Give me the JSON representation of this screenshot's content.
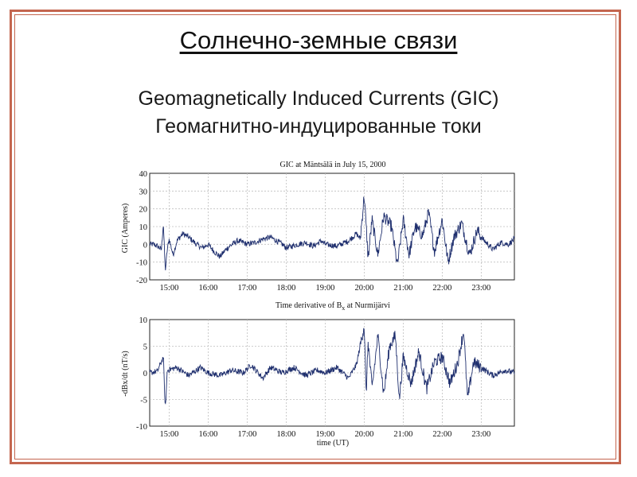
{
  "slide": {
    "title": "Солнечно-земные связи",
    "subtitle_en": "Geomagnetically Induced Currents (GIC)",
    "subtitle_ru": "Геомагнитно-индуцированные токи"
  },
  "colors": {
    "border": "#c4664f",
    "line": "#1f2f6e",
    "grid": "#bfbfbf"
  },
  "chart_data": [
    {
      "type": "line",
      "title": "GIC at Mäntsälä in July 15, 2000",
      "xlabel": "",
      "ylabel": "GIC (Amperes)",
      "xlim": [
        14.5,
        23.85
      ],
      "ylim": [
        -20,
        40
      ],
      "yticks": [
        40,
        30,
        20,
        10,
        0,
        -10,
        -20
      ],
      "xtick_values": [
        15,
        16,
        17,
        18,
        19,
        20,
        21,
        22,
        23
      ],
      "xtick_labels": [
        "15:00",
        "16:00",
        "17:00",
        "18:00",
        "19:00",
        "20:00",
        "21:00",
        "22:00",
        "23:00"
      ],
      "grid": true,
      "series": [
        {
          "values_by_hour": [
            [
              14.5,
              0
            ],
            [
              14.6,
              0
            ],
            [
              14.7,
              -1
            ],
            [
              14.8,
              -3
            ],
            [
              14.85,
              12
            ],
            [
              14.9,
              -15
            ],
            [
              14.95,
              -3
            ],
            [
              15.0,
              3
            ],
            [
              15.1,
              -6
            ],
            [
              15.2,
              2
            ],
            [
              15.35,
              6
            ],
            [
              15.5,
              4
            ],
            [
              15.7,
              0
            ],
            [
              15.85,
              -2
            ],
            [
              16.0,
              0
            ],
            [
              16.15,
              -4
            ],
            [
              16.3,
              -7
            ],
            [
              16.45,
              -3
            ],
            [
              16.55,
              -1
            ],
            [
              16.75,
              2
            ],
            [
              16.9,
              1
            ],
            [
              17.0,
              0
            ],
            [
              17.2,
              1
            ],
            [
              17.4,
              3
            ],
            [
              17.6,
              4
            ],
            [
              17.75,
              2
            ],
            [
              17.9,
              0
            ],
            [
              18.0,
              -2
            ],
            [
              18.3,
              0
            ],
            [
              18.5,
              1
            ],
            [
              18.7,
              -1
            ],
            [
              18.9,
              2
            ],
            [
              19.0,
              0
            ],
            [
              19.3,
              -1
            ],
            [
              19.6,
              2
            ],
            [
              19.8,
              6
            ],
            [
              19.9,
              3
            ],
            [
              20.0,
              28
            ],
            [
              20.1,
              -8
            ],
            [
              20.2,
              14
            ],
            [
              20.35,
              -6
            ],
            [
              20.5,
              16
            ],
            [
              20.7,
              10
            ],
            [
              20.85,
              -12
            ],
            [
              21.0,
              14
            ],
            [
              21.15,
              -6
            ],
            [
              21.3,
              10
            ],
            [
              21.5,
              5
            ],
            [
              21.65,
              18
            ],
            [
              21.8,
              -4
            ],
            [
              22.0,
              14
            ],
            [
              22.15,
              -10
            ],
            [
              22.3,
              4
            ],
            [
              22.5,
              12
            ],
            [
              22.7,
              -6
            ],
            [
              22.9,
              8
            ],
            [
              23.0,
              4
            ],
            [
              23.3,
              -3
            ],
            [
              23.5,
              1
            ],
            [
              23.7,
              0
            ],
            [
              23.85,
              3
            ]
          ]
        }
      ]
    },
    {
      "type": "line",
      "title": "Time derivative of B_x at Nurmijärvi",
      "xlabel": "time (UT)",
      "ylabel": "-dBx/dt (nT/s)",
      "xlim": [
        14.5,
        23.85
      ],
      "ylim": [
        -10,
        10
      ],
      "yticks": [
        10,
        5,
        0,
        -5,
        -10
      ],
      "xtick_values": [
        15,
        16,
        17,
        18,
        19,
        20,
        21,
        22,
        23
      ],
      "xtick_labels": [
        "15:00",
        "16:00",
        "17:00",
        "18:00",
        "19:00",
        "20:00",
        "21:00",
        "22:00",
        "23:00"
      ],
      "grid": true,
      "series": [
        {
          "values_by_hour": [
            [
              14.5,
              0
            ],
            [
              14.7,
              0.3
            ],
            [
              14.85,
              3
            ],
            [
              14.9,
              -7
            ],
            [
              14.95,
              0.5
            ],
            [
              15.2,
              1
            ],
            [
              15.5,
              -0.5
            ],
            [
              15.8,
              1
            ],
            [
              16.0,
              0
            ],
            [
              16.3,
              -0.5
            ],
            [
              16.6,
              0.5
            ],
            [
              16.9,
              0
            ],
            [
              17.1,
              1.5
            ],
            [
              17.4,
              -1
            ],
            [
              17.6,
              1
            ],
            [
              17.9,
              0
            ],
            [
              18.2,
              1
            ],
            [
              18.5,
              -0.5
            ],
            [
              18.8,
              0.5
            ],
            [
              19.0,
              0
            ],
            [
              19.3,
              1
            ],
            [
              19.6,
              -1
            ],
            [
              19.8,
              1.5
            ],
            [
              20.0,
              9
            ],
            [
              20.05,
              -4
            ],
            [
              20.1,
              6
            ],
            [
              20.2,
              -3
            ],
            [
              20.35,
              7
            ],
            [
              20.5,
              -4
            ],
            [
              20.65,
              5
            ],
            [
              20.8,
              7
            ],
            [
              20.9,
              -5
            ],
            [
              21.0,
              3
            ],
            [
              21.2,
              -2
            ],
            [
              21.4,
              4
            ],
            [
              21.6,
              -3
            ],
            [
              21.8,
              2
            ],
            [
              22.0,
              3
            ],
            [
              22.2,
              -2
            ],
            [
              22.4,
              2
            ],
            [
              22.55,
              8
            ],
            [
              22.65,
              -5
            ],
            [
              22.8,
              2
            ],
            [
              23.0,
              1
            ],
            [
              23.3,
              -0.5
            ],
            [
              23.6,
              0.5
            ],
            [
              23.85,
              0
            ]
          ]
        }
      ]
    }
  ]
}
